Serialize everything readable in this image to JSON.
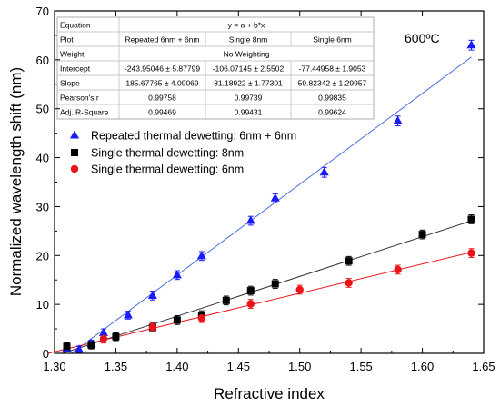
{
  "chart_data": {
    "type": "scatter",
    "xlabel": "Refractive index",
    "ylabel": "Normalized wavelength shift (nm)",
    "xlim": [
      1.3,
      1.65
    ],
    "ylim": [
      0,
      70
    ],
    "xticks": [
      "1.30",
      "1.35",
      "1.40",
      "1.45",
      "1.50",
      "1.55",
      "1.60",
      "1.65"
    ],
    "yticks": [
      "0",
      "10",
      "20",
      "30",
      "40",
      "50",
      "60",
      "70"
    ],
    "annotation": "600ºC",
    "legend_position": "upper-left",
    "grid": false,
    "series": [
      {
        "name": "Repeated thermal dewetting: 6nm + 6nm",
        "marker": "triangle",
        "color": "#1a1aff",
        "fit_color": "#4a6fe0",
        "x": [
          1.31,
          1.32,
          1.33,
          1.34,
          1.36,
          1.38,
          1.4,
          1.42,
          1.46,
          1.48,
          1.52,
          1.58,
          1.64
        ],
        "y": [
          1.0,
          0.8,
          2.0,
          4.2,
          7.8,
          11.8,
          16.0,
          19.9,
          27.1,
          31.7,
          37.0,
          47.5,
          63.0
        ],
        "yerr": [
          0.7,
          0.7,
          0.7,
          0.8,
          0.8,
          0.9,
          0.9,
          0.9,
          0.9,
          0.9,
          1.0,
          1.0,
          1.0
        ],
        "fit": {
          "slope": 185.67765,
          "intercept": -243.95046
        }
      },
      {
        "name": "Single thermal dewetting: 8nm",
        "marker": "square",
        "color": "#000000",
        "fit_color": "#333333",
        "x": [
          1.31,
          1.33,
          1.35,
          1.38,
          1.4,
          1.42,
          1.44,
          1.46,
          1.48,
          1.54,
          1.6,
          1.64
        ],
        "y": [
          1.4,
          1.7,
          3.4,
          5.3,
          6.8,
          7.8,
          10.8,
          12.8,
          14.2,
          18.9,
          24.3,
          27.4
        ],
        "yerr": [
          0.8,
          0.8,
          0.8,
          0.9,
          0.9,
          0.9,
          0.9,
          0.9,
          0.9,
          0.9,
          0.9,
          0.9
        ],
        "fit": {
          "slope": 81.18922,
          "intercept": -106.07145
        }
      },
      {
        "name": "Single thermal dewetting: 6nm",
        "marker": "circle",
        "color": "#e8141a",
        "fit_color": "#e8141a",
        "x": [
          1.34,
          1.38,
          1.42,
          1.46,
          1.5,
          1.54,
          1.58,
          1.64
        ],
        "y": [
          3.0,
          5.3,
          7.2,
          10.1,
          13.0,
          14.4,
          17.1,
          20.5
        ],
        "yerr": [
          0.9,
          0.9,
          0.9,
          0.9,
          0.9,
          0.9,
          0.9,
          0.9
        ],
        "fit": {
          "slope": 59.82342,
          "intercept": -77.44958
        }
      }
    ],
    "fit_table": {
      "rows": [
        {
          "label": "Equation",
          "cells": [
            "y = a + b*x"
          ],
          "span": true
        },
        {
          "label": "Plot",
          "cells": [
            "Repeated 6nm + 6nm",
            "Single 8nm",
            "Single 6nm"
          ]
        },
        {
          "label": "Weight",
          "cells": [
            "No Weighting"
          ],
          "span": true
        },
        {
          "label": "Intercept",
          "cells": [
            "-243.95046 ± 5.87799",
            "-106.07145 ± 2.5502",
            "-77.44958 ± 1.9053"
          ]
        },
        {
          "label": "Slope",
          "cells": [
            "185.67765 ± 4.09069",
            "81.18922 ± 1.77301",
            "59.82342 ± 1.29957"
          ]
        },
        {
          "label": "Pearson's r",
          "cells": [
            "0.99758",
            "0.99739",
            "0.99835"
          ]
        },
        {
          "label": "Adj. R-Square",
          "cells": [
            "0.99469",
            "0.99431",
            "0.99624"
          ]
        }
      ]
    }
  }
}
